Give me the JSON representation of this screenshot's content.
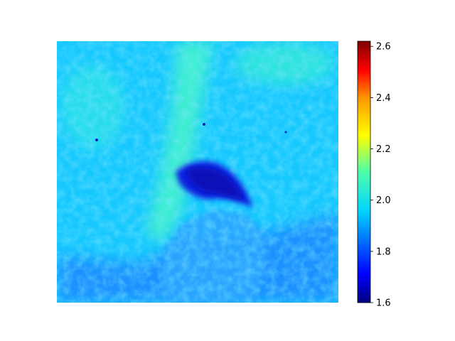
{
  "chart_data": {
    "type": "heatmap",
    "title": "",
    "xlabel": "",
    "ylabel": "",
    "axes_visible": false,
    "colormap": "jet",
    "colorbar": {
      "range": [
        1.6,
        2.62
      ],
      "ticks": [
        1.6,
        1.8,
        2.0,
        2.2,
        2.4,
        2.6
      ],
      "tick_labels": [
        "1.6",
        "1.8",
        "2.0",
        "2.2",
        "2.4",
        "2.6"
      ],
      "placement": "right"
    },
    "value_regions": [
      {
        "region": "background",
        "value": 1.95
      },
      {
        "region": "vertical bright band",
        "value": 2.02
      },
      {
        "region": "upper-left texture",
        "value": 1.93
      },
      {
        "region": "lower area",
        "value": 1.85
      },
      {
        "region": "mound structure",
        "value": 1.88
      },
      {
        "region": "dark central object",
        "value": 1.72
      }
    ],
    "colors": {
      "jet_stops": [
        "#00007f",
        "#0000ff",
        "#007fff",
        "#00ffff",
        "#7fff7f",
        "#ffff00",
        "#ff7f00",
        "#ff0000",
        "#7f0000"
      ]
    }
  }
}
